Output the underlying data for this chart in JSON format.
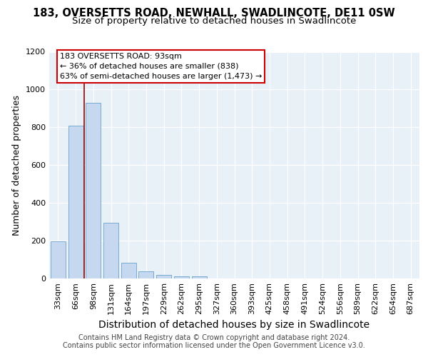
{
  "title1": "183, OVERSETTS ROAD, NEWHALL, SWADLINCOTE, DE11 0SW",
  "title2": "Size of property relative to detached houses in Swadlincote",
  "xlabel": "Distribution of detached houses by size in Swadlincote",
  "ylabel": "Number of detached properties",
  "footer1": "Contains HM Land Registry data © Crown copyright and database right 2024.",
  "footer2": "Contains public sector information licensed under the Open Government Licence v3.0.",
  "bar_labels": [
    "33sqm",
    "66sqm",
    "98sqm",
    "131sqm",
    "164sqm",
    "197sqm",
    "229sqm",
    "262sqm",
    "295sqm",
    "327sqm",
    "360sqm",
    "393sqm",
    "425sqm",
    "458sqm",
    "491sqm",
    "524sqm",
    "556sqm",
    "589sqm",
    "622sqm",
    "654sqm",
    "687sqm"
  ],
  "bar_values": [
    197,
    810,
    930,
    295,
    85,
    38,
    18,
    13,
    10,
    0,
    0,
    0,
    0,
    0,
    0,
    0,
    0,
    0,
    0,
    0,
    0
  ],
  "bar_color": "#c5d8f0",
  "bar_edge_color": "#7aabcf",
  "property_line_x": 1.5,
  "property_line_label": "183 OVERSETTS ROAD: 93sqm",
  "annotation_line1": "← 36% of detached houses are smaller (838)",
  "annotation_line2": "63% of semi-detached houses are larger (1,473) →",
  "annotation_box_color": "#ffffff",
  "annotation_border_color": "#cc0000",
  "vline_color": "#990000",
  "ylim": [
    0,
    1200
  ],
  "yticks": [
    0,
    200,
    400,
    600,
    800,
    1000,
    1200
  ],
  "background_color": "#e8f0f8",
  "grid_color": "#ffffff",
  "title1_fontsize": 10.5,
  "title2_fontsize": 9.5,
  "xlabel_fontsize": 10,
  "ylabel_fontsize": 9,
  "tick_fontsize": 8,
  "footer_fontsize": 7,
  "ann_fontsize": 8
}
